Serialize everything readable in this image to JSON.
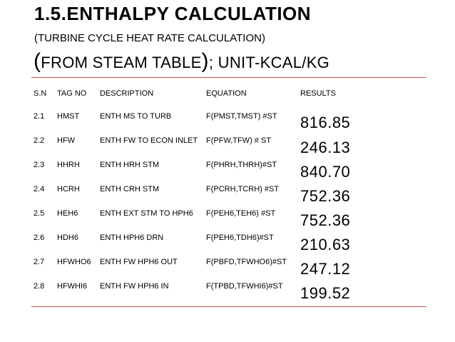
{
  "heading": {
    "title": "1.5.ENTHALPY CALCULATION",
    "subtitle": "(TURBINE CYCLE HEAT RATE CALCULATION)",
    "line3_open": "(",
    "line3_a": "FROM STEAM TABLE",
    "line3_close": ")",
    "line3_b": "; UNIT-KCAL/KG"
  },
  "table": {
    "columns": [
      "S.N",
      "TAG NO",
      "DESCRIPTION",
      "EQUATION",
      "RESULTS"
    ],
    "rows": [
      {
        "sn": "2.1",
        "tag": "HMST",
        "desc": "ENTH MS TO TURB",
        "eq": "F(PMST,TMST) #ST",
        "result": "816.85"
      },
      {
        "sn": "2.2",
        "tag": "HFW",
        "desc": "ENTH FW TO ECON INLET",
        "eq": "F(PFW,TFW) # ST",
        "result": "246.13"
      },
      {
        "sn": "2.3",
        "tag": "HHRH",
        "desc": "ENTH HRH STM",
        "eq": "F(PHRH,THRH)#ST",
        "result": "840.70"
      },
      {
        "sn": "2.4",
        "tag": "HCRH",
        "desc": "ENTH CRH STM",
        "eq": "F(PCRH,TCRH) #ST",
        "result": "752.36"
      },
      {
        "sn": "2.5",
        "tag": "HEH6",
        "desc": "ENTH EXT STM TO HPH6",
        "eq": "F(PEH6,TEH6) #ST",
        "result": "752.36"
      },
      {
        "sn": "2.6",
        "tag": "HDH6",
        "desc": "ENTH HPH6 DRN",
        "eq": "F(PEH6,TDH6)#ST",
        "result": "210.63"
      },
      {
        "sn": "2.7",
        "tag": "HFWHO6",
        "desc": "ENTH FW HPH6 OUT",
        "eq": "F(PBFD,TFWHO6)#ST",
        "result": "247.12"
      },
      {
        "sn": "2.8",
        "tag": "HFWHI6",
        "desc": "ENTH FW HPH6 IN",
        "eq": "F(TPBD,TFWHI6)#ST",
        "result": "199.52"
      }
    ]
  },
  "colors": {
    "rule": "#c0504d"
  }
}
